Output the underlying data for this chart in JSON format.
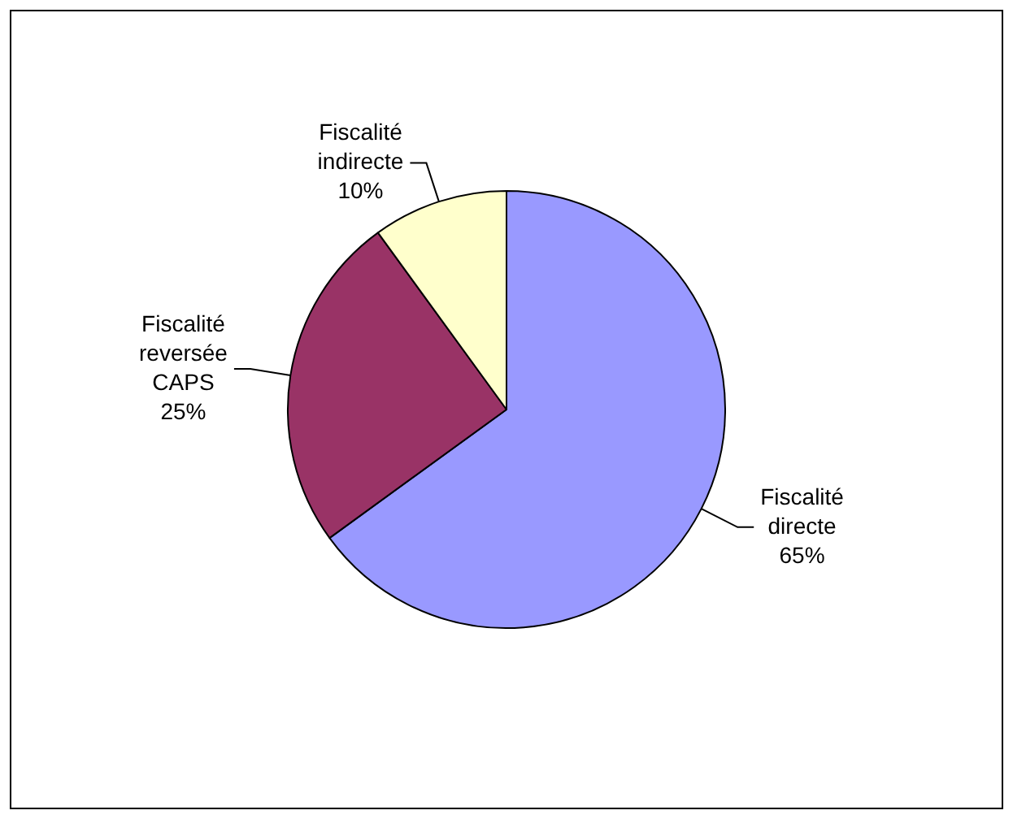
{
  "chart_data": {
    "type": "pie",
    "categories": [
      "Fiscalité directe",
      "Fiscalité reversée CAPS",
      "Fiscalité indirecte"
    ],
    "values": [
      65,
      25,
      10
    ],
    "colors": [
      "#9999ff",
      "#993366",
      "#ffffcc"
    ],
    "value_labels": [
      "65%",
      "25%",
      "10%"
    ],
    "legend": false
  }
}
